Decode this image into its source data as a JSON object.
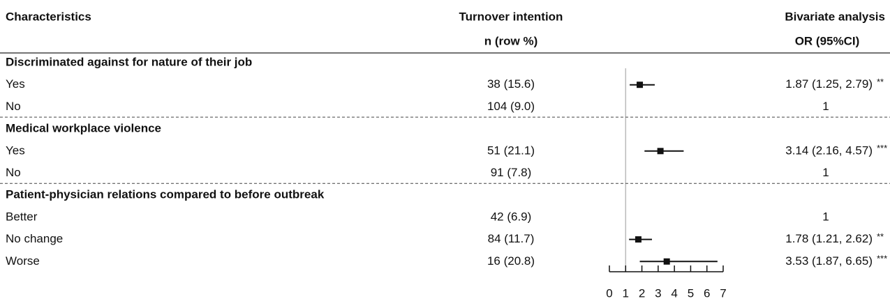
{
  "chart_data": {
    "type": "forest",
    "headers": {
      "characteristics": "Characteristics",
      "turnover": "Turnover intention",
      "turnover_sub": "n (row %)",
      "bivariate": "Bivariate analysis",
      "bivariate_sub": "OR (95%CI)"
    },
    "groups": [
      {
        "title": "Discriminated against for nature of their job",
        "rows": [
          {
            "label": "Yes",
            "n": "38 (15.6)",
            "ci_label": "1.87 (1.25, 2.79)",
            "sig": "**",
            "or": 1.87,
            "lo": 1.25,
            "hi": 2.79
          },
          {
            "label": "No",
            "n": "104 (9.0)",
            "ci_label": "1"
          }
        ]
      },
      {
        "title": "Medical workplace violence",
        "rows": [
          {
            "label": "Yes",
            "n": "51 (21.1)",
            "ci_label": "3.14 (2.16, 4.57)",
            "sig": "***",
            "or": 3.14,
            "lo": 2.16,
            "hi": 4.57
          },
          {
            "label": "No",
            "n": "91 (7.8)",
            "ci_label": "1"
          }
        ]
      },
      {
        "title": "Patient-physician relations compared to before outbreak",
        "rows": [
          {
            "label": "Better",
            "n": "42 (6.9)",
            "ci_label": "1"
          },
          {
            "label": "No change",
            "n": "84 (11.7)",
            "ci_label": "1.78 (1.21, 2.62)",
            "sig": "**",
            "or": 1.78,
            "lo": 1.21,
            "hi": 2.62
          },
          {
            "label": "Worse",
            "n": "16 (20.8)",
            "ci_label": "3.53 (1.87, 6.65)",
            "sig": "***",
            "or": 3.53,
            "lo": 1.87,
            "hi": 6.65
          }
        ]
      }
    ],
    "reference": 1,
    "xlim": [
      0,
      7
    ],
    "xticks": [
      0,
      1,
      2,
      3,
      4,
      5,
      6,
      7
    ]
  }
}
